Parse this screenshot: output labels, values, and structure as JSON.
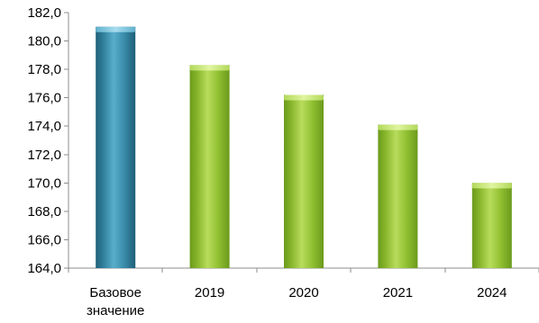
{
  "chart_data": {
    "type": "bar",
    "title": "",
    "xlabel": "",
    "ylabel": "",
    "categories": [
      [
        "Базовое",
        "значение"
      ],
      [
        "2019"
      ],
      [
        "2020"
      ],
      [
        "2021"
      ],
      [
        "2024"
      ]
    ],
    "values": [
      181.0,
      178.3,
      176.2,
      174.1,
      170.0
    ],
    "ylim": [
      164.0,
      182.0
    ],
    "y_ticks": [
      "164,0",
      "166,0",
      "168,0",
      "170,0",
      "172,0",
      "174,0",
      "176,0",
      "178,0",
      "180,0",
      "182,0"
    ],
    "grid": false,
    "legend": "none",
    "colors": {
      "base_bar": "#3a90ad",
      "other_bars": "#94c432",
      "axis": "#8c8c8c",
      "text": "#000000"
    }
  }
}
